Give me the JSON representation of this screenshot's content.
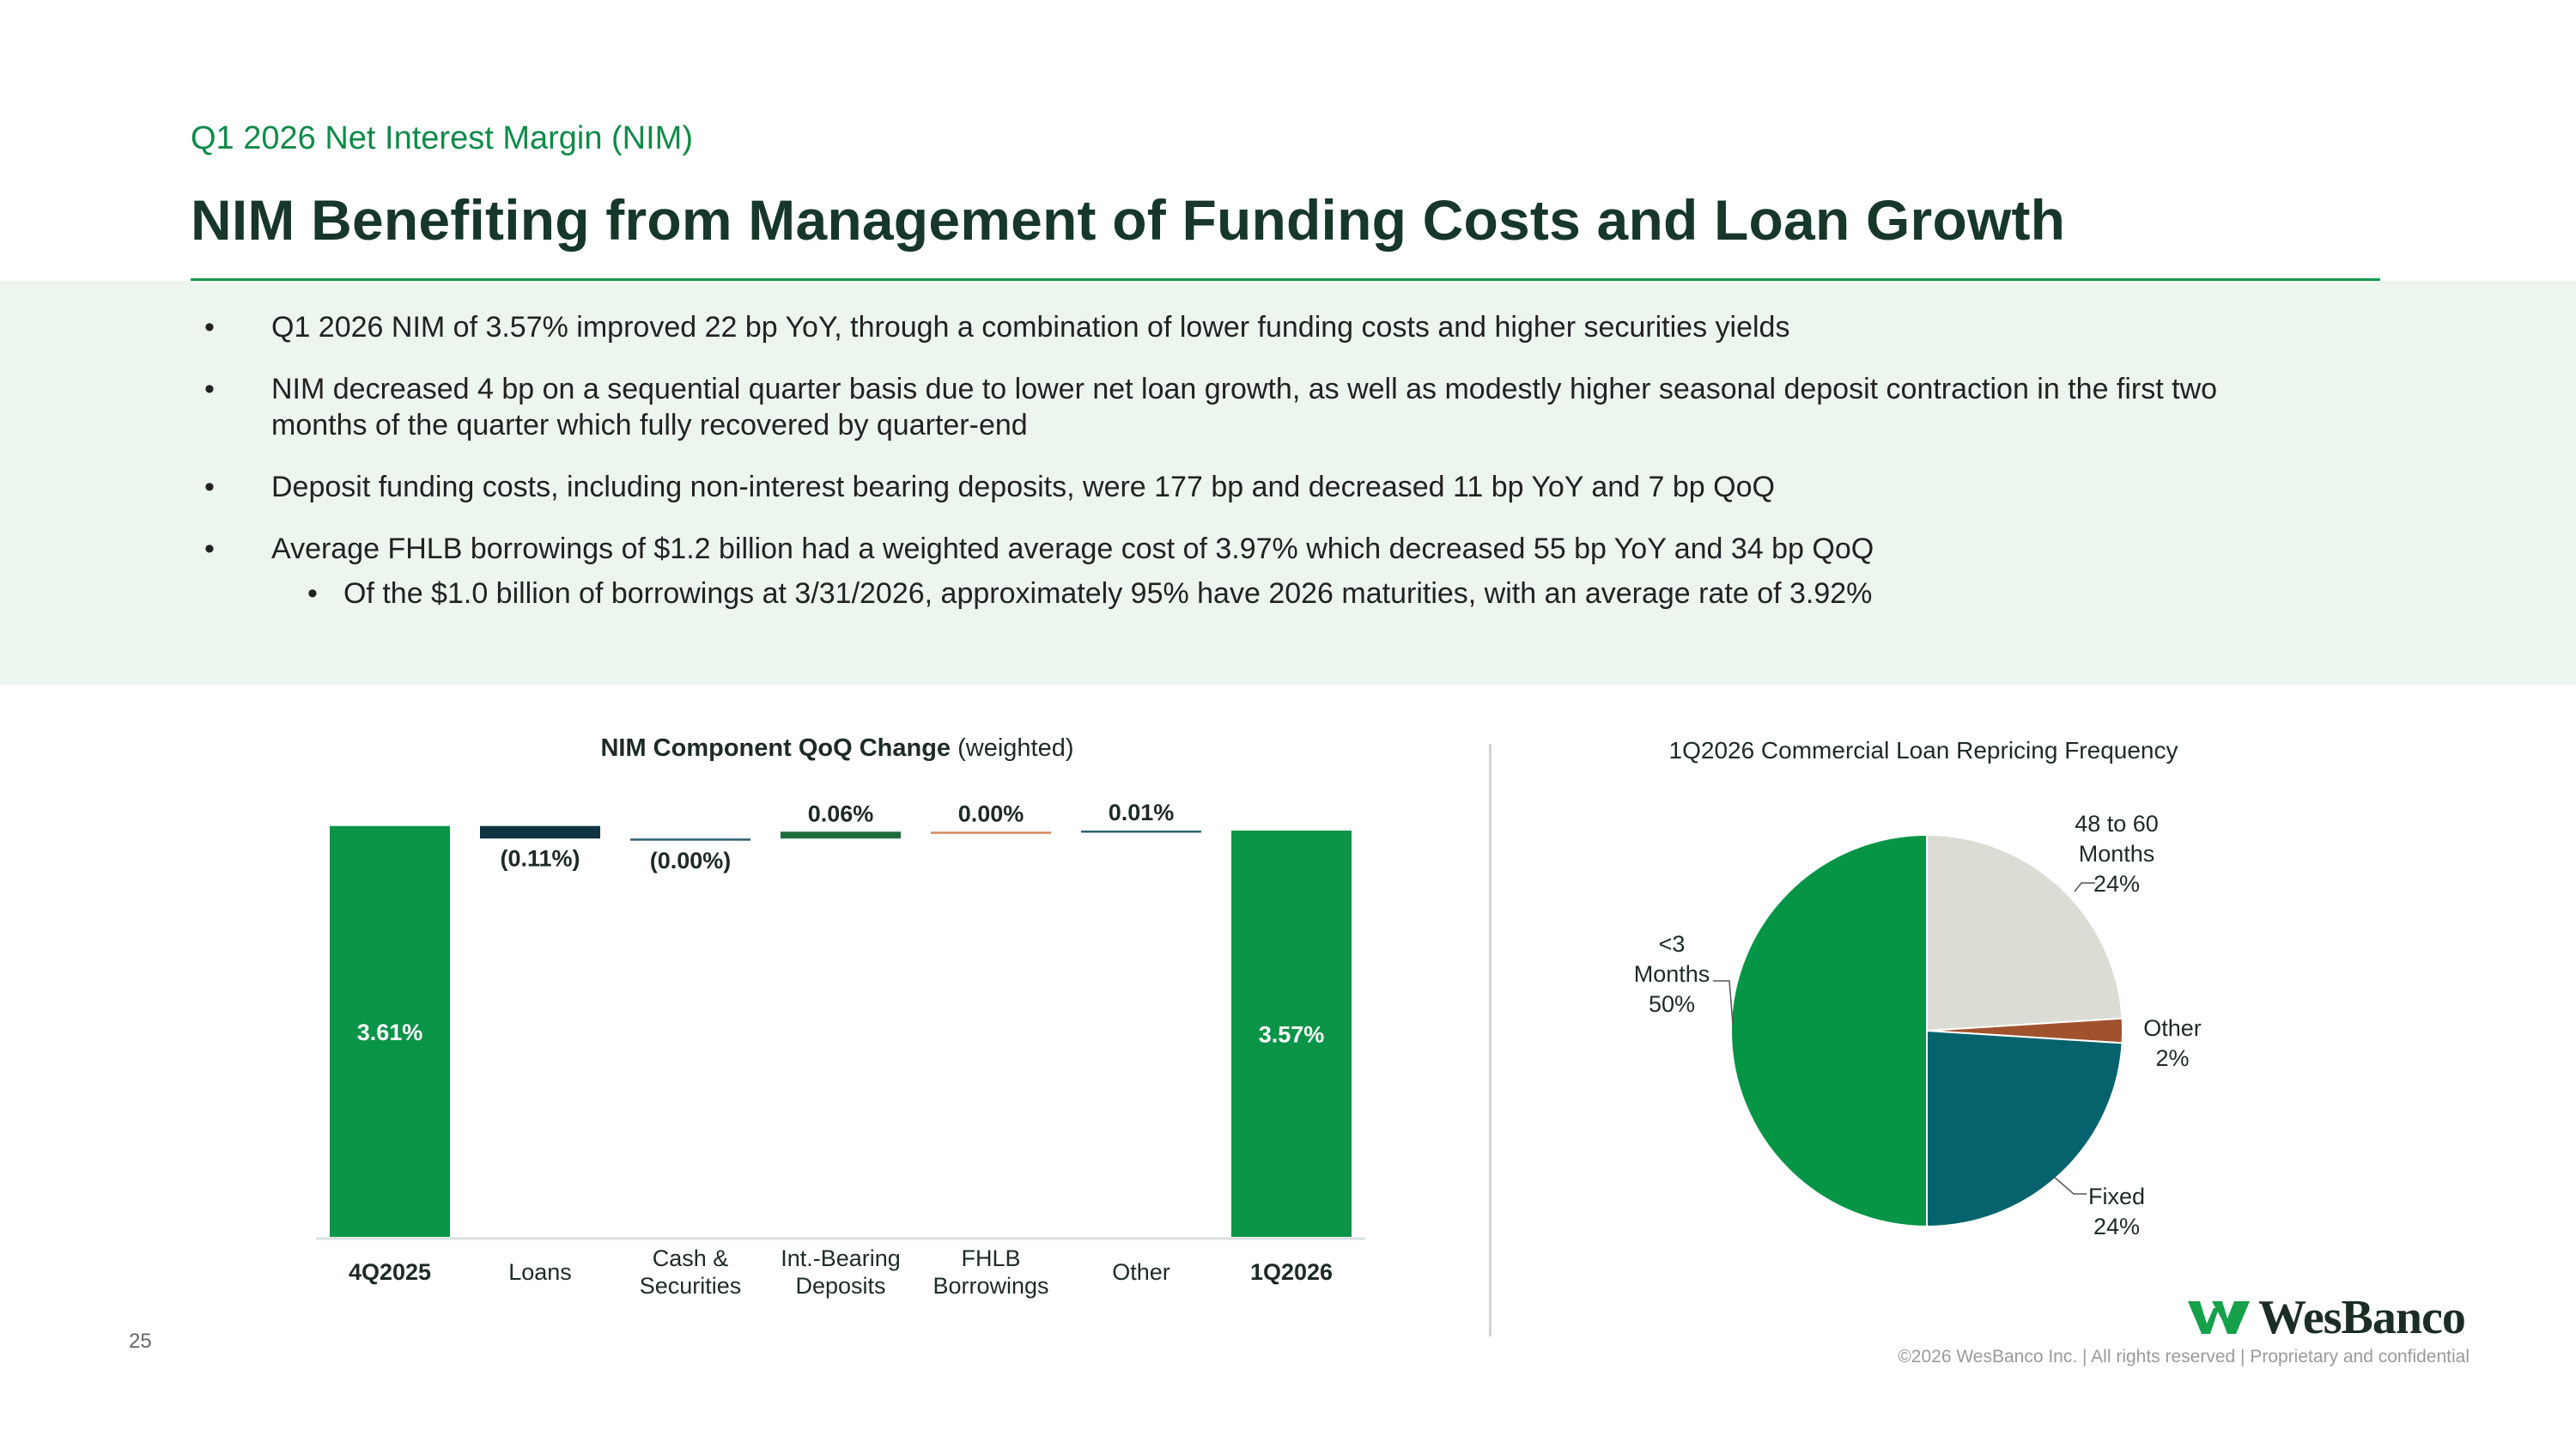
{
  "header": {
    "subtitle": "Q1 2026 Net Interest Margin (NIM)",
    "title": "NIM Benefiting from Management of Funding Costs and Loan Growth"
  },
  "bullets": [
    "Q1 2026 NIM of 3.57% improved 22 bp YoY, through a combination of lower funding costs and higher securities yields",
    "NIM decreased 4 bp on a sequential quarter basis due to lower net loan growth, as well as modestly higher seasonal deposit contraction in the first two months of the quarter which fully recovered by quarter-end",
    "Deposit funding costs, including non-interest bearing deposits, were 177 bp and decreased 11 bp YoY and 7 bp QoQ",
    "Average FHLB borrowings of $1.2 billion had a weighted average cost of 3.97% which decreased 55 bp YoY and 34 bp QoQ"
  ],
  "sub_bullet": "Of the $1.0 billion of borrowings at 3/31/2026, approximately 95% have 2026 maturities, with an average rate of 3.92%",
  "chart_data": [
    {
      "type": "bar",
      "subtype": "waterfall",
      "title": "NIM Component QoQ Change",
      "title_suffix": "(weighted)",
      "categories": [
        [
          "4Q2025"
        ],
        [
          "Loans"
        ],
        [
          "Cash &",
          "Securities"
        ],
        [
          "Int.-Bearing",
          "Deposits"
        ],
        [
          "FHLB",
          "Borrowings"
        ],
        [
          "Other"
        ],
        [
          "1Q2026"
        ]
      ],
      "values": [
        3.61,
        -0.11,
        -0.0,
        0.06,
        0.0,
        0.01,
        3.57
      ],
      "labels": [
        "3.61%",
        "(0.11%)",
        "(0.00%)",
        "0.06%",
        "0.00%",
        "0.01%",
        "3.57%"
      ],
      "kinds": [
        "total",
        "delta",
        "delta",
        "delta",
        "delta",
        "delta",
        "total"
      ],
      "colors": [
        "#0a9448",
        "#0f3340",
        "#2e5f70",
        "#1f6b3a",
        "#d98a5f",
        "#2a6470",
        "#0a9448"
      ]
    },
    {
      "type": "pie",
      "title": "1Q2026 Commercial Loan Repricing Frequency",
      "slices": [
        {
          "label": [
            "48 to 60",
            "Months",
            "24%"
          ],
          "value": 24,
          "color": "#dcdbd4"
        },
        {
          "label": [
            "Other",
            "2%"
          ],
          "value": 2,
          "color": "#a0522d"
        },
        {
          "label": [
            "Fixed",
            "24%"
          ],
          "value": 24,
          "color": "#05636e"
        },
        {
          "label": [
            "<3",
            "Months",
            "50%"
          ],
          "value": 50,
          "color": "#069447"
        }
      ]
    }
  ],
  "footer": {
    "page": "25",
    "copyright": "©2026 WesBanco Inc.  |  All rights reserved  |  Proprietary and confidential",
    "logo_text": "WesBanco",
    "logo_color": "#15a04a"
  }
}
